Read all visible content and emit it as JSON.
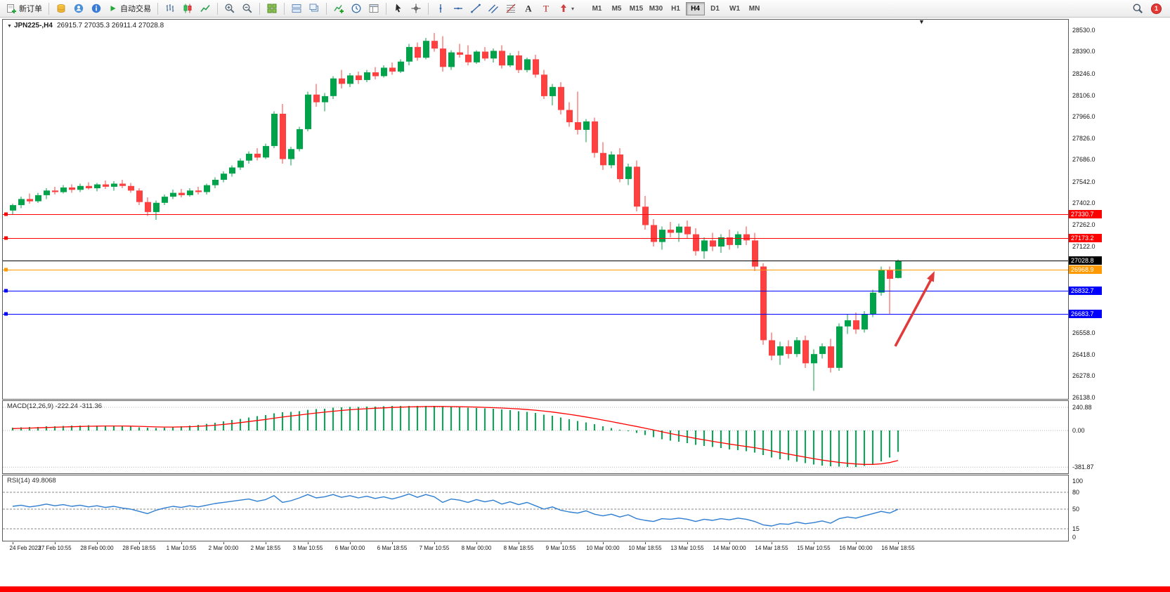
{
  "toolbar": {
    "new_order_label": "新订单",
    "autotrading_label": "自动交易",
    "arrows_caret": "▾",
    "timeframes": [
      "M1",
      "M5",
      "M15",
      "M30",
      "H1",
      "H4",
      "D1",
      "W1",
      "MN"
    ],
    "active_timeframe": "H4",
    "notification_badge": "1"
  },
  "chart": {
    "header": {
      "collapse_marker": "▼",
      "symbol_period": "JPN225-,H4",
      "ohlc_text": "26915.7 27035.3 26911.4 27028.8"
    },
    "shift_marker": "▼",
    "price_axis_labels": [
      "28530.0",
      "28390.0",
      "28246.0",
      "28106.0",
      "27966.0",
      "27826.0",
      "27686.0",
      "27542.0",
      "27402.0",
      "27262.0",
      "27122.0",
      "26558.0",
      "26418.0",
      "26278.0",
      "26138.0"
    ],
    "hlines": [
      {
        "price": 27330.7,
        "label": "27330.7",
        "color": "#FF0000",
        "kind": "resistance-line"
      },
      {
        "price": 27173.2,
        "label": "27173.2",
        "color": "#FF0000",
        "kind": "resistance-line"
      },
      {
        "price": 27028.8,
        "label": "27028.8",
        "color": "#000000",
        "kind": "current-price-line"
      },
      {
        "price": 26968.9,
        "label": "26968.9",
        "color": "#FF9900",
        "kind": "level-line"
      },
      {
        "price": 26832.7,
        "label": "26832.7",
        "color": "#0000FF",
        "kind": "support-line"
      },
      {
        "price": 26683.7,
        "label": "26683.7",
        "color": "#0000FF",
        "kind": "support-line"
      }
    ],
    "time_axis_labels": [
      "24 Feb 2023",
      "27 Feb 10:55",
      "28 Feb 00:00",
      "28 Feb 18:55",
      "1 Mar 10:55",
      "2 Mar 00:00",
      "2 Mar 18:55",
      "3 Mar 10:55",
      "6 Mar 00:00",
      "6 Mar 18:55",
      "7 Mar 10:55",
      "8 Mar 00:00",
      "8 Mar 18:55",
      "9 Mar 10:55",
      "10 Mar 00:00",
      "10 Mar 18:55",
      "13 Mar 10:55",
      "14 Mar 00:00",
      "14 Mar 18:55",
      "15 Mar 10:55",
      "16 Mar 00:00",
      "16 Mar 18:55"
    ]
  },
  "macd_panel": {
    "label": "MACD(12,26,9) -222.24 -311.36",
    "levels": [
      {
        "value": 240.88,
        "label": "240.88"
      },
      {
        "value": 0,
        "label": "0.00"
      },
      {
        "value": -381.87,
        "label": "-381.87"
      }
    ]
  },
  "rsi_panel": {
    "label": "RSI(14) 49.8068",
    "axis": [
      {
        "value": 100,
        "label": "100"
      },
      {
        "value": 80,
        "label": "80"
      },
      {
        "value": 50,
        "label": "50"
      },
      {
        "value": 15,
        "label": "15"
      },
      {
        "value": 0,
        "label": "0"
      }
    ],
    "dashed_levels": [
      80,
      50,
      15
    ]
  },
  "chart_data": [
    {
      "type": "candlestick",
      "name": "JPN225- H4",
      "up_color": "#00A24A",
      "down_color": "#FF4040",
      "ohlc": [
        [
          27355,
          27400,
          27330,
          27390
        ],
        [
          27390,
          27445,
          27370,
          27430
        ],
        [
          27430,
          27465,
          27400,
          27415
        ],
        [
          27415,
          27470,
          27405,
          27455
        ],
        [
          27455,
          27500,
          27430,
          27485
        ],
        [
          27485,
          27510,
          27460,
          27475
        ],
        [
          27475,
          27520,
          27465,
          27505
        ],
        [
          27505,
          27525,
          27470,
          27490
        ],
        [
          27490,
          27530,
          27475,
          27515
        ],
        [
          27515,
          27540,
          27490,
          27500
        ],
        [
          27500,
          27535,
          27480,
          27525
        ],
        [
          27525,
          27550,
          27495,
          27510
        ],
        [
          27510,
          27545,
          27485,
          27530
        ],
        [
          27530,
          27555,
          27500,
          27515
        ],
        [
          27515,
          27535,
          27470,
          27485
        ],
        [
          27485,
          27500,
          27390,
          27410
        ],
        [
          27410,
          27440,
          27320,
          27345
        ],
        [
          27345,
          27420,
          27295,
          27405
        ],
        [
          27405,
          27460,
          27390,
          27445
        ],
        [
          27445,
          27490,
          27430,
          27470
        ],
        [
          27470,
          27495,
          27440,
          27455
        ],
        [
          27455,
          27500,
          27445,
          27485
        ],
        [
          27485,
          27510,
          27460,
          27475
        ],
        [
          27475,
          27530,
          27460,
          27520
        ],
        [
          27520,
          27570,
          27500,
          27555
        ],
        [
          27555,
          27610,
          27540,
          27595
        ],
        [
          27595,
          27650,
          27575,
          27635
        ],
        [
          27635,
          27695,
          27620,
          27680
        ],
        [
          27680,
          27740,
          27660,
          27725
        ],
        [
          27725,
          27760,
          27680,
          27700
        ],
        [
          27700,
          27790,
          27690,
          27775
        ],
        [
          27775,
          28000,
          27760,
          27985
        ],
        [
          27985,
          28050,
          27660,
          27690
        ],
        [
          27690,
          27770,
          27650,
          27755
        ],
        [
          27755,
          27900,
          27740,
          27885
        ],
        [
          27885,
          28130,
          27870,
          28110
        ],
        [
          28110,
          28180,
          28030,
          28060
        ],
        [
          28060,
          28120,
          28000,
          28100
        ],
        [
          28100,
          28230,
          28080,
          28215
        ],
        [
          28215,
          28270,
          28150,
          28180
        ],
        [
          28180,
          28250,
          28160,
          28235
        ],
        [
          28235,
          28260,
          28180,
          28205
        ],
        [
          28205,
          28270,
          28190,
          28255
        ],
        [
          28255,
          28290,
          28210,
          28230
        ],
        [
          28230,
          28300,
          28220,
          28285
        ],
        [
          28285,
          28320,
          28240,
          28260
        ],
        [
          28260,
          28340,
          28250,
          28325
        ],
        [
          28325,
          28440,
          28300,
          28420
        ],
        [
          28420,
          28450,
          28330,
          28350
        ],
        [
          28350,
          28480,
          28340,
          28460
        ],
        [
          28460,
          28510,
          28390,
          28410
        ],
        [
          28410,
          28490,
          28260,
          28290
        ],
        [
          28290,
          28400,
          28270,
          28385
        ],
        [
          28385,
          28440,
          28350,
          28370
        ],
        [
          28370,
          28430,
          28300,
          28320
        ],
        [
          28320,
          28400,
          28310,
          28390
        ],
        [
          28390,
          28420,
          28330,
          28345
        ],
        [
          28345,
          28410,
          28320,
          28395
        ],
        [
          28395,
          28430,
          28280,
          28300
        ],
        [
          28300,
          28380,
          28290,
          28365
        ],
        [
          28365,
          28395,
          28250,
          28270
        ],
        [
          28270,
          28350,
          28255,
          28340
        ],
        [
          28340,
          28370,
          28220,
          28240
        ],
        [
          28240,
          28270,
          28080,
          28100
        ],
        [
          28100,
          28180,
          28040,
          28160
        ],
        [
          28160,
          28190,
          27980,
          28010
        ],
        [
          28010,
          28060,
          27900,
          27930
        ],
        [
          27930,
          28130,
          27850,
          27880
        ],
        [
          27880,
          27950,
          27800,
          27935
        ],
        [
          27935,
          27960,
          27700,
          27730
        ],
        [
          27730,
          27800,
          27620,
          27650
        ],
        [
          27650,
          27740,
          27630,
          27720
        ],
        [
          27720,
          27760,
          27540,
          27560
        ],
        [
          27560,
          27660,
          27520,
          27640
        ],
        [
          27640,
          27680,
          27350,
          27380
        ],
        [
          27380,
          27450,
          27230,
          27260
        ],
        [
          27260,
          27300,
          27120,
          27150
        ],
        [
          27150,
          27250,
          27100,
          27230
        ],
        [
          27230,
          27280,
          27180,
          27210
        ],
        [
          27210,
          27270,
          27150,
          27250
        ],
        [
          27250,
          27290,
          27170,
          27200
        ],
        [
          27200,
          27240,
          27060,
          27090
        ],
        [
          27090,
          27180,
          27040,
          27160
        ],
        [
          27160,
          27210,
          27090,
          27120
        ],
        [
          27120,
          27200,
          27080,
          27180
        ],
        [
          27180,
          27230,
          27100,
          27130
        ],
        [
          27130,
          27220,
          27110,
          27200
        ],
        [
          27200,
          27250,
          27130,
          27160
        ],
        [
          27160,
          27210,
          26960,
          26990
        ],
        [
          26990,
          27010,
          26480,
          26510
        ],
        [
          26510,
          26560,
          26380,
          26410
        ],
        [
          26410,
          26500,
          26350,
          26470
        ],
        [
          26470,
          26510,
          26390,
          26420
        ],
        [
          26420,
          26530,
          26400,
          26510
        ],
        [
          26510,
          26540,
          26330,
          26360
        ],
        [
          26360,
          26450,
          26180,
          26420
        ],
        [
          26420,
          26490,
          26390,
          26470
        ],
        [
          26470,
          26520,
          26300,
          26330
        ],
        [
          26330,
          26620,
          26310,
          26600
        ],
        [
          26600,
          26680,
          26550,
          26640
        ],
        [
          26640,
          26690,
          26550,
          26580
        ],
        [
          26580,
          26700,
          26560,
          26680
        ],
        [
          26680,
          26840,
          26660,
          26820
        ],
        [
          26820,
          26990,
          26800,
          26970
        ],
        [
          26970,
          26990,
          26680,
          26910
        ],
        [
          26915.7,
          27035.3,
          26911.4,
          27028.8
        ]
      ]
    },
    {
      "type": "bar",
      "name": "MACD(12,26,9)",
      "histogram_color": "#00B050",
      "signal_color": "#FF0000",
      "values": [
        28,
        32,
        35,
        38,
        42,
        45,
        48,
        50,
        52,
        53,
        52,
        50,
        48,
        45,
        40,
        34,
        28,
        26,
        30,
        36,
        42,
        50,
        58,
        68,
        80,
        94,
        108,
        122,
        136,
        148,
        160,
        178,
        188,
        194,
        202,
        214,
        222,
        228,
        236,
        240,
        244,
        246,
        248,
        250,
        252,
        254,
        255,
        256,
        255,
        255,
        254,
        248,
        244,
        242,
        238,
        234,
        230,
        226,
        218,
        212,
        202,
        194,
        182,
        166,
        152,
        136,
        118,
        100,
        84,
        64,
        42,
        26,
        8,
        -8,
        -26,
        -48,
        -70,
        -90,
        -106,
        -118,
        -132,
        -148,
        -160,
        -172,
        -184,
        -196,
        -206,
        -216,
        -230,
        -255,
        -280,
        -298,
        -312,
        -326,
        -340,
        -355,
        -364,
        -372,
        -376,
        -380,
        -378,
        -370,
        -352,
        -322,
        -282,
        -222.24
      ],
      "signal": [
        20,
        22.4,
        24.9,
        27.5,
        30.4,
        33.3,
        36.3,
        39,
        41.6,
        43.9,
        45.5,
        46.4,
        46.7,
        46.4,
        45.1,
        42.9,
        39.9,
        37.1,
        35.7,
        35.8,
        37,
        39.6,
        43.3,
        48.2,
        54.6,
        62.5,
        71.6,
        81.7,
        92.5,
        103.6,
        114.9,
        127.5,
        139.6,
        150.5,
        160.8,
        171.4,
        181.5,
        190.8,
        199.9,
        207.9,
        215.1,
        221.3,
        226.6,
        231.3,
        235.4,
        239.2,
        242.3,
        245,
        247,
        248.6,
        249.7,
        249.4,
        248.3,
        247,
        245.2,
        243,
        240.4,
        237.5,
        233.6,
        229.3,
        223.8,
        217.8,
        210.7,
        201.8,
        191.8,
        180.6,
        168.1,
        154.5,
        140.4,
        125.1,
        108.5,
        92,
        75.2,
        58.6,
        41.7,
        23.7,
        5,
        -14,
        -32.4,
        -49.5,
        -66,
        -82.4,
        -97.9,
        -112.7,
        -127,
        -140.8,
        -153.8,
        -166.2,
        -179,
        -194.2,
        -211.4,
        -228.7,
        -245.4,
        -261.5,
        -277.2,
        -292.8,
        -307,
        -320,
        -331.2,
        -341,
        -348.4,
        -352.7,
        -352.6,
        -346.5,
        -333.6,
        -311.36
      ]
    },
    {
      "type": "line",
      "name": "RSI(14)",
      "color": "#2D7DD2",
      "range": [
        0,
        100
      ],
      "values": [
        55,
        57,
        54,
        56,
        59,
        56,
        58,
        55,
        57,
        54,
        56,
        53,
        55,
        52,
        50,
        46,
        42,
        48,
        52,
        55,
        53,
        56,
        54,
        57,
        60,
        62,
        64,
        66,
        68,
        64,
        67,
        74,
        62,
        65,
        70,
        76,
        70,
        72,
        76,
        71,
        74,
        70,
        73,
        69,
        72,
        68,
        72,
        77,
        71,
        76,
        72,
        62,
        68,
        66,
        62,
        67,
        63,
        66,
        59,
        63,
        58,
        62,
        56,
        50,
        54,
        48,
        45,
        43,
        47,
        41,
        38,
        41,
        36,
        40,
        33,
        30,
        28,
        33,
        32,
        34,
        32,
        28,
        32,
        30,
        33,
        31,
        34,
        32,
        28,
        22,
        20,
        24,
        23,
        27,
        24,
        26,
        29,
        25,
        33,
        36,
        34,
        38,
        42,
        46,
        43,
        49.81
      ]
    }
  ]
}
